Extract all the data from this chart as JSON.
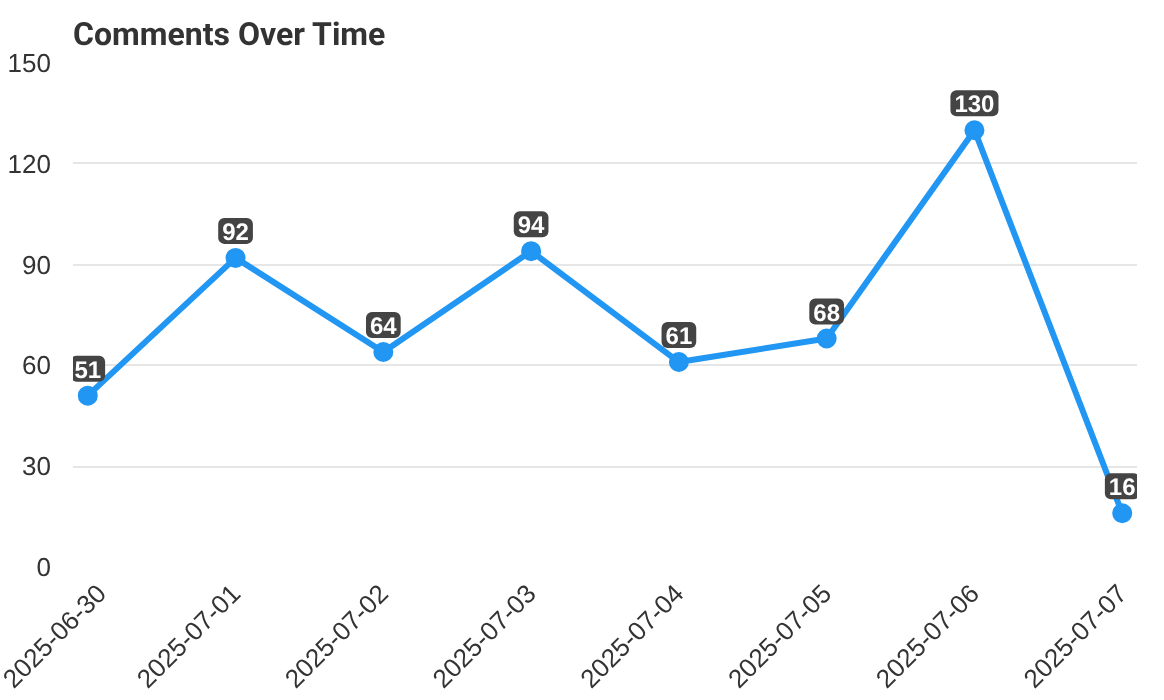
{
  "chart_data": {
    "type": "line",
    "title": "Comments Over Time",
    "categories": [
      "2025-06-30",
      "2025-07-01",
      "2025-07-02",
      "2025-07-03",
      "2025-07-04",
      "2025-07-05",
      "2025-07-06",
      "2025-07-07"
    ],
    "series": [
      {
        "color": "#2196f3",
        "values": [
          51,
          92,
          64,
          94,
          61,
          68,
          130,
          16
        ]
      }
    ],
    "ylim": [
      0,
      150
    ],
    "yticks": [
      0,
      30,
      60,
      90,
      120,
      150
    ],
    "grid": "y",
    "marker": "circle",
    "data_labels": true
  }
}
